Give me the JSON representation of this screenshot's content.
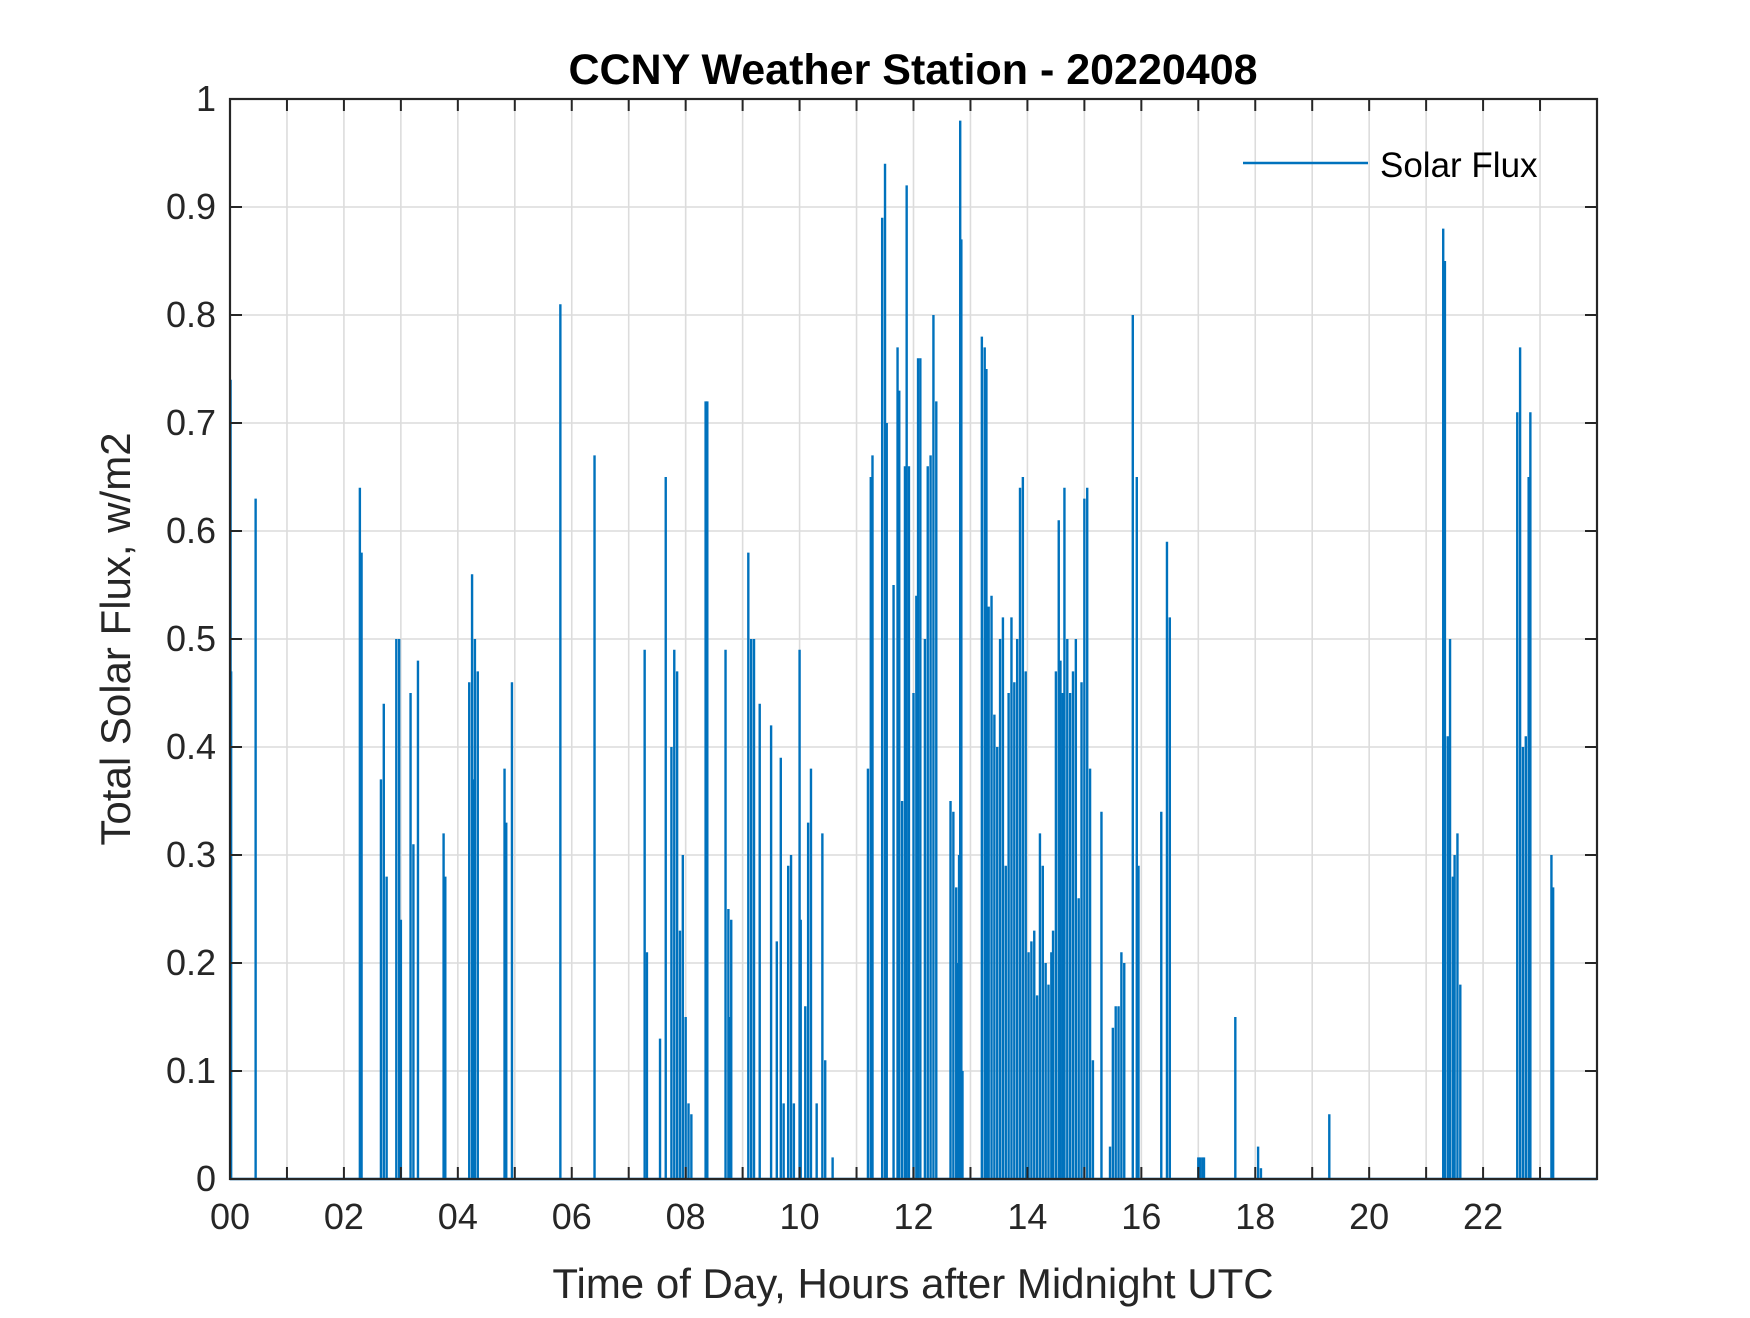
{
  "chart_data": {
    "type": "line",
    "title": "CCNY Weather Station - 20220408",
    "xlabel": "Time of Day, Hours after Midnight UTC",
    "ylabel": "Total Solar Flux, w/m2",
    "xlim": [
      0,
      24
    ],
    "ylim": [
      0,
      1
    ],
    "xticks": [
      0,
      2,
      4,
      6,
      8,
      10,
      12,
      14,
      16,
      18,
      20,
      22
    ],
    "xtick_labels": [
      "00",
      "02",
      "04",
      "06",
      "08",
      "10",
      "12",
      "14",
      "16",
      "18",
      "20",
      "22"
    ],
    "yticks": [
      0,
      0.1,
      0.2,
      0.3,
      0.4,
      0.5,
      0.6,
      0.7,
      0.8,
      0.9,
      1
    ],
    "ytick_labels": [
      "0",
      "0.1",
      "0.2",
      "0.3",
      "0.4",
      "0.5",
      "0.6",
      "0.7",
      "0.8",
      "0.9",
      "1"
    ],
    "grid": true,
    "legend_position": "top-right",
    "series": [
      {
        "name": "Solar Flux",
        "color": "#0072BD",
        "spikes": [
          [
            0.01,
            0.74
          ],
          [
            0.02,
            0.47
          ],
          [
            0.45,
            0.63
          ],
          [
            2.28,
            0.64
          ],
          [
            2.31,
            0.58
          ],
          [
            2.65,
            0.37
          ],
          [
            2.7,
            0.44
          ],
          [
            2.75,
            0.28
          ],
          [
            2.92,
            0.5
          ],
          [
            2.97,
            0.5
          ],
          [
            3.0,
            0.24
          ],
          [
            3.17,
            0.45
          ],
          [
            3.22,
            0.31
          ],
          [
            3.3,
            0.48
          ],
          [
            3.75,
            0.32
          ],
          [
            3.78,
            0.28
          ],
          [
            4.2,
            0.46
          ],
          [
            4.25,
            0.56
          ],
          [
            4.3,
            0.5
          ],
          [
            4.35,
            0.47
          ],
          [
            4.28,
            0.37
          ],
          [
            4.82,
            0.38
          ],
          [
            4.85,
            0.33
          ],
          [
            4.95,
            0.46
          ],
          [
            5.8,
            0.81
          ],
          [
            6.4,
            0.67
          ],
          [
            7.28,
            0.49
          ],
          [
            7.32,
            0.21
          ],
          [
            7.55,
            0.13
          ],
          [
            7.65,
            0.65
          ],
          [
            7.75,
            0.4
          ],
          [
            7.8,
            0.49
          ],
          [
            7.85,
            0.47
          ],
          [
            7.9,
            0.23
          ],
          [
            7.95,
            0.3
          ],
          [
            8.0,
            0.15
          ],
          [
            8.05,
            0.07
          ],
          [
            8.1,
            0.06
          ],
          [
            8.35,
            0.72
          ],
          [
            8.38,
            0.72
          ],
          [
            8.7,
            0.49
          ],
          [
            8.75,
            0.25
          ],
          [
            8.8,
            0.24
          ],
          [
            8.77,
            0.15
          ],
          [
            9.1,
            0.58
          ],
          [
            9.15,
            0.5
          ],
          [
            9.2,
            0.5
          ],
          [
            9.3,
            0.44
          ],
          [
            9.5,
            0.42
          ],
          [
            9.6,
            0.22
          ],
          [
            9.67,
            0.39
          ],
          [
            9.72,
            0.07
          ],
          [
            9.8,
            0.29
          ],
          [
            9.85,
            0.3
          ],
          [
            9.9,
            0.07
          ],
          [
            10.0,
            0.49
          ],
          [
            10.02,
            0.24
          ],
          [
            10.1,
            0.16
          ],
          [
            10.15,
            0.33
          ],
          [
            10.2,
            0.38
          ],
          [
            10.3,
            0.07
          ],
          [
            10.4,
            0.32
          ],
          [
            10.45,
            0.11
          ],
          [
            10.58,
            0.02
          ],
          [
            11.2,
            0.38
          ],
          [
            11.25,
            0.65
          ],
          [
            11.28,
            0.67
          ],
          [
            11.45,
            0.89
          ],
          [
            11.5,
            0.94
          ],
          [
            11.53,
            0.7
          ],
          [
            11.65,
            0.55
          ],
          [
            11.72,
            0.77
          ],
          [
            11.75,
            0.73
          ],
          [
            11.8,
            0.35
          ],
          [
            11.85,
            0.66
          ],
          [
            11.88,
            0.92
          ],
          [
            11.92,
            0.66
          ],
          [
            12.0,
            0.45
          ],
          [
            12.05,
            0.54
          ],
          [
            12.08,
            0.76
          ],
          [
            12.12,
            0.76
          ],
          [
            12.2,
            0.5
          ],
          [
            12.25,
            0.66
          ],
          [
            12.3,
            0.67
          ],
          [
            12.35,
            0.8
          ],
          [
            12.4,
            0.72
          ],
          [
            12.65,
            0.35
          ],
          [
            12.7,
            0.34
          ],
          [
            12.75,
            0.27
          ],
          [
            12.8,
            0.3
          ],
          [
            12.82,
            0.98
          ],
          [
            12.84,
            0.87
          ],
          [
            12.78,
            0.2
          ],
          [
            12.86,
            0.1
          ],
          [
            13.2,
            0.78
          ],
          [
            13.25,
            0.77
          ],
          [
            13.28,
            0.75
          ],
          [
            13.32,
            0.53
          ],
          [
            13.37,
            0.54
          ],
          [
            13.42,
            0.43
          ],
          [
            13.47,
            0.4
          ],
          [
            13.52,
            0.5
          ],
          [
            13.57,
            0.52
          ],
          [
            13.62,
            0.29
          ],
          [
            13.67,
            0.45
          ],
          [
            13.72,
            0.52
          ],
          [
            13.77,
            0.46
          ],
          [
            13.82,
            0.5
          ],
          [
            13.87,
            0.64
          ],
          [
            13.92,
            0.65
          ],
          [
            13.97,
            0.47
          ],
          [
            14.02,
            0.21
          ],
          [
            14.07,
            0.22
          ],
          [
            14.12,
            0.23
          ],
          [
            14.17,
            0.17
          ],
          [
            14.22,
            0.32
          ],
          [
            14.27,
            0.29
          ],
          [
            14.32,
            0.2
          ],
          [
            14.37,
            0.18
          ],
          [
            14.42,
            0.21
          ],
          [
            14.45,
            0.23
          ],
          [
            14.5,
            0.47
          ],
          [
            14.55,
            0.61
          ],
          [
            14.58,
            0.48
          ],
          [
            14.62,
            0.45
          ],
          [
            14.65,
            0.64
          ],
          [
            14.7,
            0.5
          ],
          [
            14.75,
            0.45
          ],
          [
            14.8,
            0.47
          ],
          [
            14.85,
            0.5
          ],
          [
            14.9,
            0.26
          ],
          [
            14.95,
            0.46
          ],
          [
            15.0,
            0.63
          ],
          [
            15.05,
            0.64
          ],
          [
            15.1,
            0.38
          ],
          [
            15.15,
            0.11
          ],
          [
            15.3,
            0.34
          ],
          [
            15.45,
            0.03
          ],
          [
            15.5,
            0.14
          ],
          [
            15.55,
            0.16
          ],
          [
            15.6,
            0.16
          ],
          [
            15.65,
            0.21
          ],
          [
            15.7,
            0.2
          ],
          [
            15.85,
            0.8
          ],
          [
            15.92,
            0.65
          ],
          [
            15.95,
            0.29
          ],
          [
            16.35,
            0.34
          ],
          [
            16.45,
            0.59
          ],
          [
            16.5,
            0.52
          ],
          [
            17.0,
            0.02
          ],
          [
            17.03,
            0.02
          ],
          [
            17.07,
            0.02
          ],
          [
            17.1,
            0.02
          ],
          [
            17.65,
            0.15
          ],
          [
            18.05,
            0.03
          ],
          [
            18.1,
            0.01
          ],
          [
            19.3,
            0.06
          ],
          [
            21.3,
            0.88
          ],
          [
            21.33,
            0.85
          ],
          [
            21.38,
            0.41
          ],
          [
            21.42,
            0.5
          ],
          [
            21.47,
            0.28
          ],
          [
            21.5,
            0.3
          ],
          [
            21.55,
            0.32
          ],
          [
            21.6,
            0.18
          ],
          [
            22.6,
            0.71
          ],
          [
            22.65,
            0.77
          ],
          [
            22.7,
            0.4
          ],
          [
            22.75,
            0.41
          ],
          [
            22.8,
            0.65
          ],
          [
            22.83,
            0.71
          ],
          [
            23.2,
            0.3
          ],
          [
            23.23,
            0.27
          ]
        ]
      }
    ]
  }
}
